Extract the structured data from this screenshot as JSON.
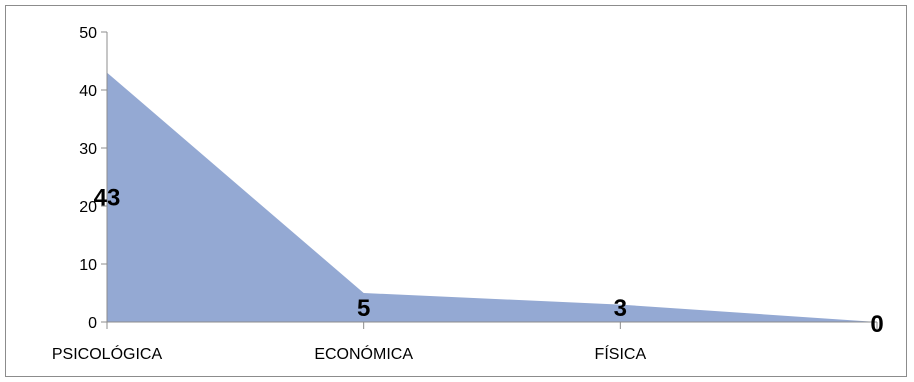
{
  "chart_data": {
    "type": "area",
    "title": "",
    "xlabel": "",
    "ylabel": "",
    "categories": [
      "PSICOLÓGICA",
      "ECONÓMICA",
      "FÍSICA",
      ""
    ],
    "series": [
      {
        "values": [
          43,
          5,
          3,
          0
        ],
        "color": "#94A9D3"
      }
    ],
    "data_labels": [
      "43",
      "5",
      "3",
      "0"
    ],
    "ylim": [
      0,
      50
    ],
    "yticks": [
      0,
      10,
      20,
      30,
      40,
      50
    ],
    "grid": false,
    "legend": "none"
  }
}
